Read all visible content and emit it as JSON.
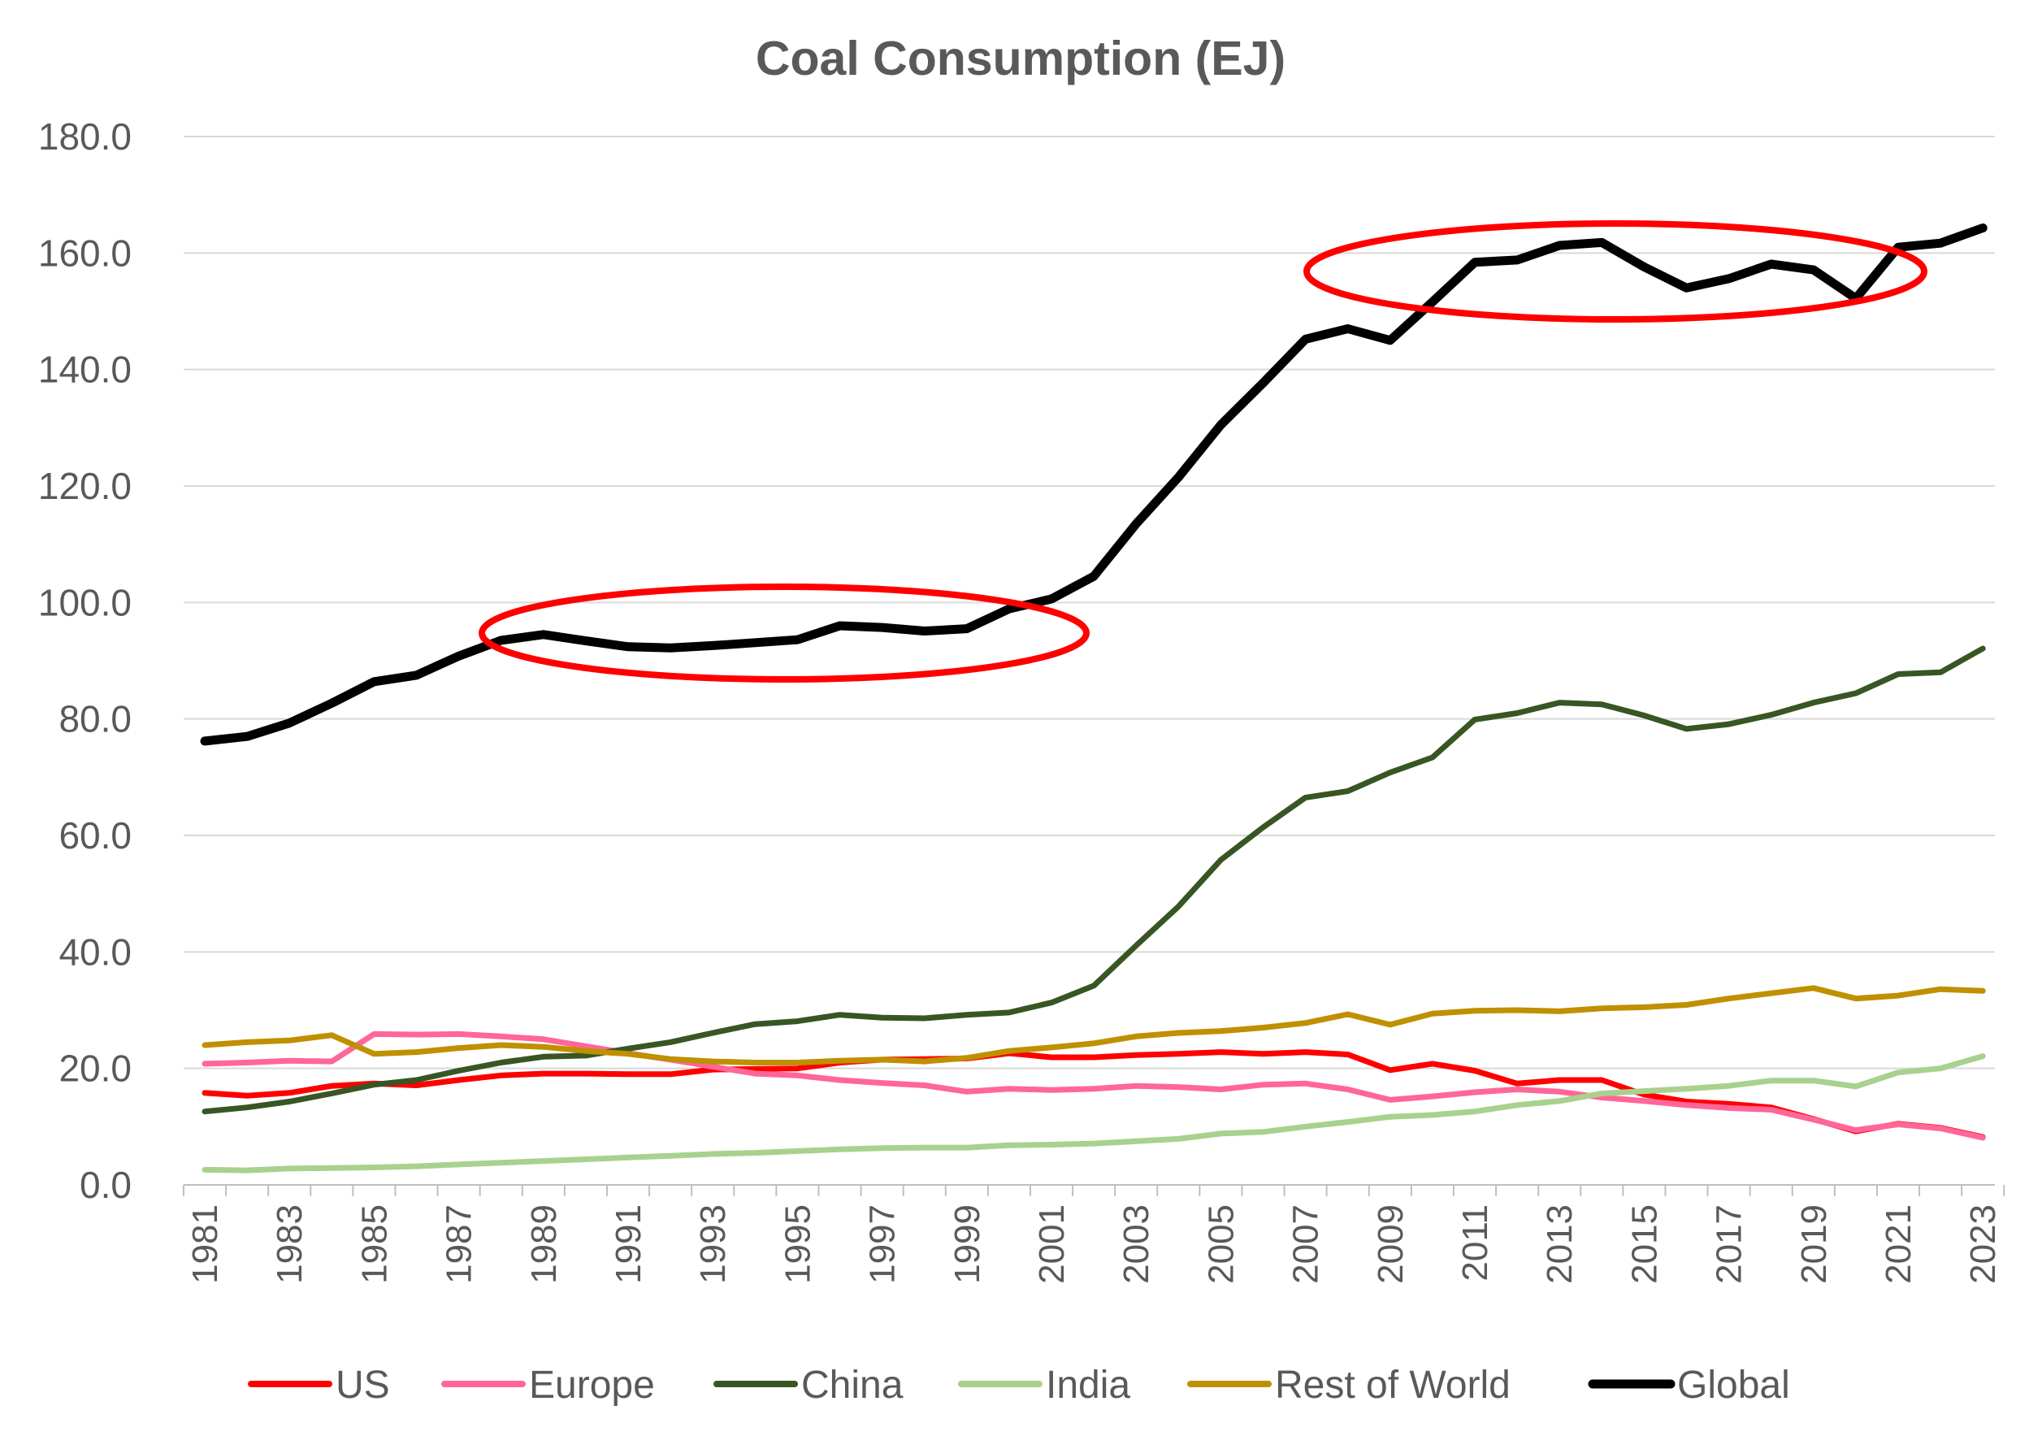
{
  "chart_data": {
    "type": "line",
    "title": "Coal Consumption (EJ)",
    "xlabel": "",
    "ylabel": "",
    "ylim": [
      0,
      180
    ],
    "yticks": [
      "0.0",
      "20.0",
      "40.0",
      "60.0",
      "80.0",
      "100.0",
      "120.0",
      "140.0",
      "160.0",
      "180.0"
    ],
    "grid": true,
    "legend_position": "bottom",
    "x": [
      1981,
      1982,
      1983,
      1984,
      1985,
      1986,
      1987,
      1988,
      1989,
      1990,
      1991,
      1992,
      1993,
      1994,
      1995,
      1996,
      1997,
      1998,
      1999,
      2000,
      2001,
      2002,
      2003,
      2004,
      2005,
      2006,
      2007,
      2008,
      2009,
      2010,
      2011,
      2012,
      2013,
      2014,
      2015,
      2016,
      2017,
      2018,
      2019,
      2020,
      2021,
      2022,
      2023
    ],
    "xtick_labels": [
      "1981",
      "1983",
      "1985",
      "1987",
      "1989",
      "1991",
      "1993",
      "1995",
      "1997",
      "1999",
      "2001",
      "2003",
      "2005",
      "2007",
      "2009",
      "2011",
      "2013",
      "2015",
      "2017",
      "2019",
      "2021",
      "2023"
    ],
    "series": [
      {
        "name": "US",
        "color": "#ff0000",
        "values": [
          15.8,
          15.3,
          15.8,
          17.0,
          17.4,
          17.1,
          18.0,
          18.8,
          19.1,
          19.1,
          19.0,
          19.0,
          19.8,
          19.9,
          20.0,
          21.0,
          21.5,
          21.6,
          21.7,
          22.6,
          21.9,
          21.9,
          22.3,
          22.5,
          22.8,
          22.5,
          22.8,
          22.4,
          19.7,
          20.8,
          19.6,
          17.4,
          18.0,
          18.0,
          15.5,
          14.3,
          13.9,
          13.3,
          11.3,
          9.2,
          10.5,
          9.8,
          8.2
        ]
      },
      {
        "name": "Europe",
        "color": "#ff6699",
        "values": [
          20.8,
          21.0,
          21.3,
          21.2,
          25.9,
          25.8,
          25.9,
          25.5,
          25.0,
          23.8,
          22.6,
          21.5,
          20.3,
          19.1,
          18.8,
          18.0,
          17.5,
          17.1,
          16.0,
          16.5,
          16.3,
          16.5,
          17.0,
          16.8,
          16.4,
          17.2,
          17.4,
          16.4,
          14.6,
          15.2,
          15.9,
          16.4,
          16.0,
          15.0,
          14.4,
          13.7,
          13.2,
          12.9,
          11.2,
          9.4,
          10.4,
          9.7,
          8.1
        ]
      },
      {
        "name": "China",
        "color": "#375623",
        "values": [
          12.6,
          13.3,
          14.3,
          15.7,
          17.2,
          18.0,
          19.6,
          21.0,
          22.0,
          22.2,
          23.4,
          24.5,
          26.1,
          27.6,
          28.1,
          29.2,
          28.7,
          28.6,
          29.2,
          29.6,
          31.3,
          34.2,
          41.1,
          47.8,
          55.8,
          61.4,
          66.5,
          67.6,
          70.8,
          73.4,
          79.9,
          81.0,
          82.8,
          82.5,
          80.6,
          78.3,
          79.1,
          80.7,
          82.8,
          84.4,
          87.7,
          88.0,
          92.1
        ]
      },
      {
        "name": "India",
        "color": "#a9d18e",
        "values": [
          2.6,
          2.5,
          2.8,
          2.9,
          3.0,
          3.2,
          3.5,
          3.8,
          4.1,
          4.4,
          4.7,
          5.0,
          5.3,
          5.5,
          5.8,
          6.1,
          6.3,
          6.4,
          6.4,
          6.8,
          6.9,
          7.1,
          7.5,
          7.9,
          8.8,
          9.1,
          10.0,
          10.8,
          11.7,
          12.0,
          12.6,
          13.7,
          14.4,
          15.7,
          16.1,
          16.5,
          17.0,
          17.9,
          17.9,
          16.9,
          19.3,
          20.0,
          22.1
        ]
      },
      {
        "name": "Rest of World",
        "color": "#bf9000",
        "values": [
          24.0,
          24.5,
          24.8,
          25.7,
          22.5,
          22.8,
          23.5,
          24.0,
          23.7,
          23.0,
          22.5,
          21.6,
          21.2,
          21.0,
          21.0,
          21.3,
          21.5,
          21.2,
          21.8,
          23.0,
          23.6,
          24.3,
          25.5,
          26.1,
          26.4,
          27.0,
          27.8,
          29.3,
          27.5,
          29.4,
          29.9,
          30.0,
          29.8,
          30.3,
          30.5,
          30.9,
          32.0,
          32.9,
          33.8,
          32.0,
          32.5,
          33.6,
          33.3
        ]
      },
      {
        "name": "Global",
        "color": "#000000",
        "values": [
          76.2,
          77.0,
          79.3,
          82.7,
          86.4,
          87.5,
          90.8,
          93.5,
          94.5,
          93.4,
          92.4,
          92.2,
          92.6,
          93.1,
          93.6,
          96.0,
          95.7,
          95.1,
          95.5,
          98.9,
          100.6,
          104.5,
          113.5,
          121.5,
          130.5,
          137.7,
          145.2,
          147.0,
          145.0,
          151.6,
          158.4,
          158.8,
          161.3,
          161.8,
          157.6,
          154.0,
          155.6,
          158.1,
          157.1,
          152.2,
          161.0,
          161.7,
          164.3
        ]
      }
    ]
  }
}
